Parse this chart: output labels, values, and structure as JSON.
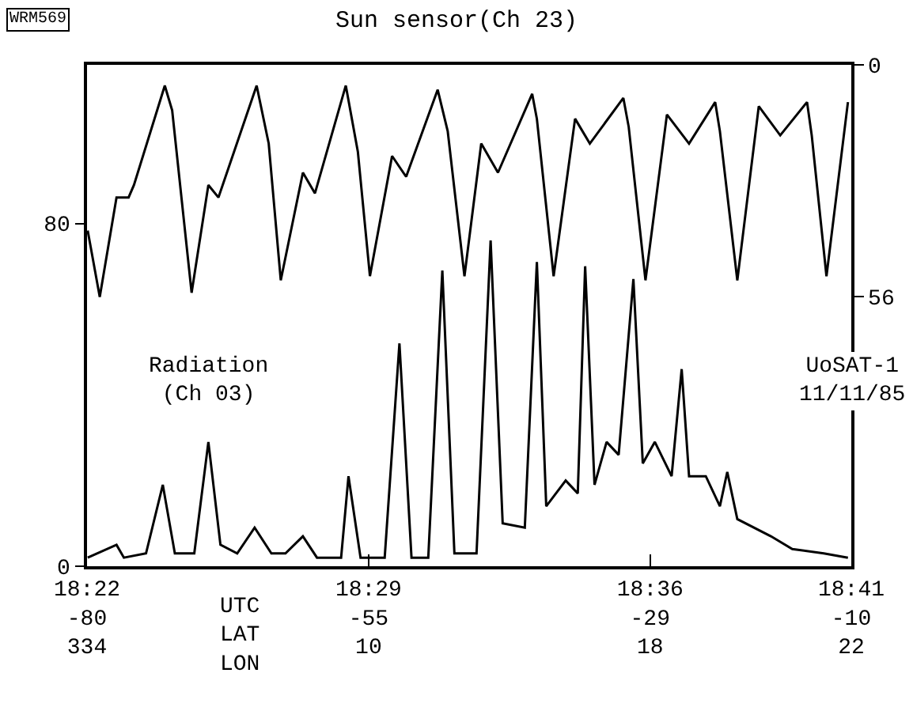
{
  "chart_data": {
    "type": "line",
    "title": "Sun sensor(Ch 23)",
    "annotations": [
      "WRM569",
      "Radiation\n(Ch 03)",
      "UoSAT-1\n11/11/85",
      "UTC\nLAT\nLON"
    ],
    "xlim": [
      "--11-11T18:22",
      "--11-11T18:41"
    ],
    "xticks": [
      {
        "value": "--11-11T18:22",
        "label": "18:22\n-80\n334"
      },
      {
        "value": "--11-11T18:29",
        "label": "18:29\n-55\n10"
      },
      {
        "value": "--11-11T18:36",
        "label": "18:36\n-29\n18"
      },
      {
        "value": "--11-11T18:41",
        "label": "18:41\n-10\n22"
      }
    ],
    "ylim": [
      0,
      117
    ],
    "yticks": [
      0,
      80
    ],
    "y2lim": [
      121,
      0
    ],
    "y2ticks": [
      0,
      56
    ],
    "line_style": "solid",
    "series": [
      {
        "color": "#000000",
        "axis": "y2",
        "x": [
          "--11-11T18:22:01",
          "--11-11T18:22:19",
          "--11-11T18:22:44",
          "--11-11T18:23:02",
          "--11-11T18:23:10",
          "--11-11T18:23:56",
          "--11-11T18:24:07",
          "--11-11T18:24:36",
          "--11-11T18:25:01",
          "--11-11T18:25:16",
          "--11-11T18:26:13",
          "--11-11T18:26:31",
          "--11-11T18:26:49",
          "--11-11T18:27:22",
          "--11-11T18:27:40",
          "--11-11T18:28:26",
          "--11-11T18:28:44",
          "--11-11T18:29:02",
          "--11-11T18:29:35",
          "--11-11T18:29:56",
          "--11-11T18:30:43",
          "--11-11T18:30:58",
          "--11-11T18:31:23",
          "--11-11T18:31:48",
          "--11-11T18:32:13",
          "--11-11T18:33:04",
          "--11-11T18:33:11",
          "--11-11T18:33:36",
          "--11-11T18:34:08",
          "--11-11T18:34:30",
          "--11-11T18:35:20",
          "--11-11T18:35:28",
          "--11-11T18:35:53",
          "--11-11T18:36:25",
          "--11-11T18:36:58",
          "--11-11T18:37:37",
          "--11-11T18:37:44",
          "--11-11T18:38:10",
          "--11-11T18:38:42",
          "--11-11T18:39:14",
          "--11-11T18:39:54",
          "--11-11T18:40:01",
          "--11-11T18:40:23",
          "--11-11T18:40:55"
        ],
        "values": [
          40,
          56,
          32,
          32,
          29,
          5,
          11,
          55,
          29,
          32,
          5,
          19,
          52,
          26,
          31,
          5,
          21,
          51,
          22,
          27,
          6,
          16,
          51,
          19,
          26,
          7,
          13,
          51,
          13,
          19,
          8,
          15,
          52,
          12,
          19,
          9,
          16,
          52,
          10,
          17,
          9,
          17,
          51,
          9
        ]
      },
      {
        "color": "#000000",
        "x": [
          "--11-11T18:22:01",
          "--11-11T18:22:44",
          "--11-11T18:22:55",
          "--11-11T18:23:28",
          "--11-11T18:23:53",
          "--11-11T18:24:11",
          "--11-11T18:24:40",
          "--11-11T18:25:01",
          "--11-11T18:25:19",
          "--11-11T18:25:44",
          "--11-11T18:26:10",
          "--11-11T18:26:35",
          "--11-11T18:26:56",
          "--11-11T18:27:22",
          "--11-11T18:27:43",
          "--11-11T18:28:19",
          "--11-11T18:28:30",
          "--11-11T18:28:48",
          "--11-11T18:29:24",
          "--11-11T18:29:46",
          "--11-11T18:30:04",
          "--11-11T18:30:29",
          "--11-11T18:30:50",
          "--11-11T18:31:08",
          "--11-11T18:31:41",
          "--11-11T18:32:02",
          "--11-11T18:32:20",
          "--11-11T18:32:53",
          "--11-11T18:33:11",
          "--11-11T18:33:25",
          "--11-11T18:33:54",
          "--11-11T18:34:12",
          "--11-11T18:34:23",
          "--11-11T18:34:37",
          "--11-11T18:34:55",
          "--11-11T18:35:13",
          "--11-11T18:35:35",
          "--11-11T18:35:49",
          "--11-11T18:36:07",
          "--11-11T18:36:32",
          "--11-11T18:36:47",
          "--11-11T18:36:58",
          "--11-11T18:37:23",
          "--11-11T18:37:44",
          "--11-11T18:37:55",
          "--11-11T18:38:10",
          "--11-11T18:39:00",
          "--11-11T18:39:32",
          "--11-11T18:40:19",
          "--11-11T18:40:55"
        ],
        "values": [
          2,
          5,
          2,
          3,
          19,
          3,
          3,
          29,
          5,
          3,
          9,
          3,
          3,
          7,
          2,
          2,
          21,
          2,
          2,
          52,
          2,
          2,
          69,
          3,
          3,
          76,
          10,
          9,
          71,
          14,
          20,
          17,
          70,
          19,
          29,
          26,
          67,
          24,
          29,
          21,
          46,
          21,
          21,
          14,
          22,
          11,
          7,
          4,
          3,
          2
        ]
      }
    ]
  }
}
